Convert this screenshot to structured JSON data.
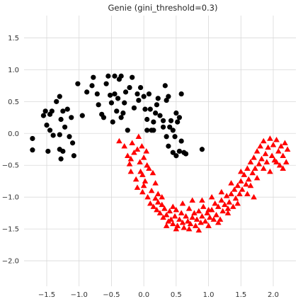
{
  "chart_data": {
    "type": "scatter",
    "title": "Genie (gini_threshold=0.3)",
    "xlabel": "",
    "ylabel": "",
    "xlim": [
      -1.85,
      2.35
    ],
    "ylim": [
      -2.4,
      1.85
    ],
    "grid": true,
    "x_ticks": [
      -1.5,
      -1.0,
      -0.5,
      0.0,
      0.5,
      1.0,
      1.5,
      2.0
    ],
    "x_tick_labels": [
      "−1.5",
      "−1.0",
      "−0.5",
      "0.0",
      "0.5",
      "1.0",
      "1.5",
      "2.0"
    ],
    "y_ticks": [
      1.5,
      1.0,
      0.5,
      0.0,
      -0.5,
      -1.0,
      -1.5,
      -2.0
    ],
    "y_tick_labels": [
      "1.5",
      "1.0",
      "0.5",
      "0.0",
      "−0.5",
      "−1.0",
      "−1.5",
      "−2.0"
    ],
    "series": [
      {
        "marker": "circle",
        "color": "#000000",
        "points": [
          [
            -1.72,
            -0.08
          ],
          [
            -1.72,
            -0.26
          ],
          [
            -1.55,
            0.28
          ],
          [
            -1.52,
            0.35
          ],
          [
            -1.5,
            0.13
          ],
          [
            -1.48,
            -0.28
          ],
          [
            -1.45,
            0.05
          ],
          [
            -1.42,
            0.35
          ],
          [
            -1.4,
            -0.03
          ],
          [
            -1.35,
            0.5
          ],
          [
            -1.3,
            0.58
          ],
          [
            -1.28,
            0.22
          ],
          [
            -1.25,
            0.35
          ],
          [
            -1.22,
            0.1
          ],
          [
            -1.3,
            -0.25
          ],
          [
            -1.25,
            -0.28
          ],
          [
            -1.28,
            -0.4
          ],
          [
            -1.18,
            0.38
          ],
          [
            -1.15,
            -0.05
          ],
          [
            -1.12,
            0.25
          ],
          [
            -1.1,
            -0.15
          ],
          [
            -1.08,
            -0.35
          ],
          [
            -1.3,
            -0.02
          ],
          [
            -1.45,
            0.3
          ],
          [
            -1.02,
            0.78
          ],
          [
            -0.95,
            0.28
          ],
          [
            -0.88,
            0.65
          ],
          [
            -0.8,
            0.75
          ],
          [
            -0.78,
            0.88
          ],
          [
            -0.72,
            0.62
          ],
          [
            -0.7,
            0.45
          ],
          [
            -0.65,
            0.3
          ],
          [
            -0.62,
            0.25
          ],
          [
            -0.58,
            0.78
          ],
          [
            -0.55,
            0.9
          ],
          [
            -0.52,
            0.6
          ],
          [
            -0.5,
            0.48
          ],
          [
            -0.48,
            0.18
          ],
          [
            -0.45,
            0.9
          ],
          [
            -0.42,
            0.35
          ],
          [
            -0.4,
            0.55
          ],
          [
            -0.38,
            0.85
          ],
          [
            -0.35,
            0.25
          ],
          [
            -0.32,
            0.32
          ],
          [
            -0.3,
            0.48
          ],
          [
            -0.28,
            0.65
          ],
          [
            -0.25,
            0.05
          ],
          [
            -0.22,
            0.72
          ],
          [
            -0.18,
            0.88
          ],
          [
            -0.15,
            0.4
          ],
          [
            -0.1,
            0.62
          ],
          [
            -0.08,
            0.52
          ],
          [
            -0.05,
            0.72
          ],
          [
            0.0,
            0.58
          ],
          [
            0.02,
            0.38
          ],
          [
            0.05,
            0.22
          ],
          [
            0.08,
            0.62
          ],
          [
            0.1,
            0.38
          ],
          [
            0.12,
            0.05
          ],
          [
            0.15,
            0.18
          ],
          [
            0.18,
            0.32
          ],
          [
            0.2,
            0.45
          ],
          [
            0.22,
            0.55
          ],
          [
            0.25,
            0.28
          ],
          [
            0.3,
            0.2
          ],
          [
            0.33,
            0.75
          ],
          [
            0.35,
            0.52
          ],
          [
            0.38,
            0.58
          ],
          [
            0.4,
            0.1
          ],
          [
            0.42,
            0.2
          ],
          [
            0.45,
            0.05
          ],
          [
            0.48,
            -0.05
          ],
          [
            0.5,
            0.32
          ],
          [
            0.52,
            0.18
          ],
          [
            0.55,
            0.25
          ],
          [
            0.58,
            0.62
          ],
          [
            0.62,
            -0.3
          ],
          [
            0.65,
            -0.32
          ],
          [
            0.35,
            -0.05
          ],
          [
            0.38,
            -0.2
          ],
          [
            0.45,
            -0.3
          ],
          [
            0.5,
            -0.35
          ],
          [
            0.55,
            -0.28
          ],
          [
            0.58,
            -0.12
          ],
          [
            0.3,
            0.1
          ],
          [
            0.05,
            0.05
          ],
          [
            -0.45,
            0.62
          ],
          [
            -0.35,
            0.9
          ],
          [
            0.15,
            0.05
          ],
          [
            0.9,
            -0.25
          ]
        ]
      },
      {
        "marker": "triangle",
        "color": "#ff0000",
        "points": [
          [
            -0.38,
            -0.12
          ],
          [
            -0.3,
            -0.2
          ],
          [
            -0.25,
            -0.35
          ],
          [
            -0.22,
            -0.48
          ],
          [
            -0.2,
            -0.6
          ],
          [
            -0.18,
            -0.15
          ],
          [
            -0.15,
            -0.3
          ],
          [
            -0.12,
            -0.72
          ],
          [
            -0.1,
            -0.85
          ],
          [
            -0.08,
            -0.05
          ],
          [
            -0.06,
            -0.45
          ],
          [
            -0.05,
            -0.6
          ],
          [
            -0.03,
            -0.2
          ],
          [
            -0.02,
            -0.92
          ],
          [
            0.0,
            -0.38
          ],
          [
            0.02,
            -0.75
          ],
          [
            0.04,
            -0.28
          ],
          [
            0.06,
            -1.0
          ],
          [
            0.08,
            -0.55
          ],
          [
            0.1,
            -1.1
          ],
          [
            0.12,
            -0.9
          ],
          [
            0.15,
            -1.15
          ],
          [
            0.18,
            -1.02
          ],
          [
            0.2,
            -1.2
          ],
          [
            0.22,
            -1.08
          ],
          [
            0.25,
            -1.25
          ],
          [
            0.28,
            -1.12
          ],
          [
            0.3,
            -1.32
          ],
          [
            0.32,
            -1.18
          ],
          [
            0.35,
            -1.28
          ],
          [
            0.38,
            -1.38
          ],
          [
            0.4,
            -1.22
          ],
          [
            0.42,
            -1.35
          ],
          [
            0.45,
            -1.42
          ],
          [
            0.48,
            -1.3
          ],
          [
            0.5,
            -1.2
          ],
          [
            0.52,
            -1.45
          ],
          [
            0.55,
            -1.35
          ],
          [
            0.58,
            -1.25
          ],
          [
            0.6,
            -1.4
          ],
          [
            0.62,
            -1.48
          ],
          [
            0.65,
            -1.3
          ],
          [
            0.68,
            -1.38
          ],
          [
            0.7,
            -1.18
          ],
          [
            0.72,
            -1.42
          ],
          [
            0.75,
            -1.32
          ],
          [
            0.78,
            -1.25
          ],
          [
            0.8,
            -1.45
          ],
          [
            0.82,
            -1.35
          ],
          [
            0.85,
            -1.22
          ],
          [
            0.88,
            -1.4
          ],
          [
            0.9,
            -1.3
          ],
          [
            0.92,
            -1.15
          ],
          [
            0.95,
            -1.38
          ],
          [
            0.98,
            -1.25
          ],
          [
            1.0,
            -1.45
          ],
          [
            1.02,
            -1.32
          ],
          [
            1.05,
            -1.2
          ],
          [
            1.08,
            -1.35
          ],
          [
            1.1,
            -1.1
          ],
          [
            1.12,
            -1.28
          ],
          [
            1.15,
            -1.15
          ],
          [
            1.18,
            -1.35
          ],
          [
            1.2,
            -1.05
          ],
          [
            1.22,
            -1.22
          ],
          [
            1.25,
            -1.12
          ],
          [
            1.28,
            -0.98
          ],
          [
            1.3,
            -1.25
          ],
          [
            1.32,
            -1.08
          ],
          [
            1.35,
            -0.95
          ],
          [
            1.38,
            -1.15
          ],
          [
            1.4,
            -0.88
          ],
          [
            1.42,
            -1.02
          ],
          [
            1.45,
            -0.82
          ],
          [
            1.48,
            -0.95
          ],
          [
            1.5,
            -0.75
          ],
          [
            1.52,
            -0.88
          ],
          [
            1.55,
            -0.65
          ],
          [
            1.58,
            -0.8
          ],
          [
            1.6,
            -0.55
          ],
          [
            1.62,
            -0.72
          ],
          [
            1.65,
            -0.45
          ],
          [
            1.68,
            -0.62
          ],
          [
            1.7,
            -0.38
          ],
          [
            1.72,
            -0.55
          ],
          [
            1.75,
            -0.28
          ],
          [
            1.78,
            -0.48
          ],
          [
            1.8,
            -0.2
          ],
          [
            1.82,
            -0.4
          ],
          [
            1.85,
            -0.12
          ],
          [
            1.88,
            -0.32
          ],
          [
            1.9,
            -0.45
          ],
          [
            1.92,
            -0.22
          ],
          [
            1.95,
            -0.08
          ],
          [
            1.98,
            -0.35
          ],
          [
            2.0,
            -0.18
          ],
          [
            2.02,
            -0.42
          ],
          [
            2.05,
            -0.1
          ],
          [
            2.08,
            -0.28
          ],
          [
            2.1,
            -0.5
          ],
          [
            2.12,
            -0.2
          ],
          [
            2.15,
            -0.35
          ],
          [
            2.18,
            -0.15
          ],
          [
            2.2,
            -0.45
          ],
          [
            2.22,
            -0.25
          ],
          [
            -0.02,
            -0.65
          ],
          [
            0.0,
            -0.82
          ],
          [
            0.14,
            -0.62
          ],
          [
            0.22,
            -0.95
          ],
          [
            0.28,
            -1.0
          ],
          [
            0.45,
            -1.15
          ],
          [
            0.6,
            -1.1
          ],
          [
            0.75,
            -1.05
          ],
          [
            0.9,
            -1.05
          ],
          [
            1.05,
            -1.0
          ],
          [
            1.2,
            -0.92
          ],
          [
            1.35,
            -0.78
          ],
          [
            1.5,
            -0.6
          ],
          [
            1.65,
            -0.82
          ],
          [
            1.7,
            -1.0
          ],
          [
            -0.2,
            -0.4
          ],
          [
            -0.1,
            -0.25
          ],
          [
            0.05,
            -0.5
          ],
          [
            0.18,
            -0.78
          ],
          [
            0.35,
            -1.45
          ],
          [
            0.5,
            -1.5
          ],
          [
            0.7,
            -1.5
          ],
          [
            0.85,
            -1.52
          ],
          [
            1.0,
            -1.2
          ],
          [
            1.15,
            -1.4
          ],
          [
            1.3,
            -1.18
          ],
          [
            1.45,
            -1.1
          ],
          [
            1.6,
            -0.95
          ],
          [
            1.75,
            -0.7
          ],
          [
            1.85,
            -0.55
          ],
          [
            1.95,
            -0.6
          ],
          [
            2.05,
            -0.45
          ],
          [
            2.15,
            -0.55
          ]
        ]
      }
    ]
  }
}
